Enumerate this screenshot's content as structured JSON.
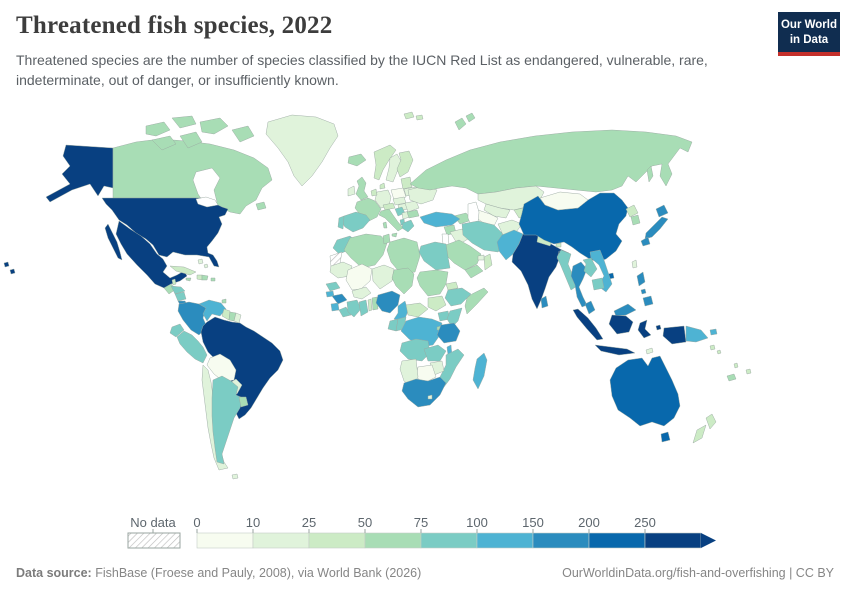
{
  "header": {
    "title": "Threatened fish species, 2022",
    "subtitle": "Threatened species are the number of species classified by the IUCN Red List as endangered, vulnerable, rare, indeterminate, out of danger, or insufficiently known.",
    "logo": {
      "line1": "Our World",
      "line2": "in Data",
      "bg_color": "#102d50",
      "accent_color": "#c4302b"
    }
  },
  "legend": {
    "no_data_label": "No data",
    "tick_values": [
      "0",
      "10",
      "25",
      "50",
      "75",
      "100",
      "150",
      "200",
      "250"
    ],
    "bins": [
      {
        "label": "0-10",
        "color": "#f7fcf0"
      },
      {
        "label": "10-25",
        "color": "#e0f3db"
      },
      {
        "label": "25-50",
        "color": "#ccebc5"
      },
      {
        "label": "50-75",
        "color": "#a8ddb5"
      },
      {
        "label": "75-100",
        "color": "#7bccc4"
      },
      {
        "label": "100-150",
        "color": "#4eb3d3"
      },
      {
        "label": "150-200",
        "color": "#2b8cbe"
      },
      {
        "label": "200-250",
        "color": "#0868ac"
      },
      {
        "label": "250+",
        "color": "#084081"
      }
    ]
  },
  "footer": {
    "source_label": "Data source:",
    "source_text": " FishBase (Froese and Pauly, 2008), via World Bank (2026)",
    "attribution": "OurWorldinData.org/fish-and-overfishing | CC BY"
  },
  "chart_data": {
    "type": "choropleth",
    "title": "Threatened fish species, 2022",
    "unit": "number of threatened fish species (IUCN Red List)",
    "bin_edges": [
      0,
      10,
      25,
      50,
      75,
      100,
      150,
      200,
      250
    ],
    "legend_arrow_open_ended": true,
    "countries": {
      "United States": "250+",
      "Mexico": "250+",
      "Brazil": "250+",
      "India": "250+",
      "Bangladesh": "250+",
      "Indonesia": "250+",
      "China": "200-250",
      "Australia": "200-250",
      "Colombia": "150-200",
      "Japan": "150-200",
      "Thailand": "150-200",
      "Philippines": "150-200",
      "Malaysia": "150-200",
      "Sri Lanka": "150-200",
      "Tanzania": "150-200",
      "South Africa": "150-200",
      "Costa Rica": "150-200",
      "Panama": "150-200",
      "Guinea": "150-200",
      "Nigeria": "150-200",
      "Turkey": "100-150",
      "Pakistan": "100-150",
      "Venezuela": "100-150",
      "Vietnam": "100-150",
      "Cameroon": "100-150",
      "Democratic Republic of Congo": "100-150",
      "Madagascar": "100-150",
      "Malawi": "100-150",
      "Papua New Guinea": "100-150",
      "Sierra Leone": "100-150",
      "Guinea-Bissau": "100-150",
      "Spain": "75-100",
      "Portugal": "75-100",
      "Greece": "75-100",
      "Croatia": "75-100",
      "Morocco": "75-100",
      "Egypt": "75-100",
      "Iran": "75-100",
      "Ethiopia": "75-100",
      "Kenya": "75-100",
      "Uganda": "75-100",
      "Cote d'Ivoire": "75-100",
      "Ghana": "75-100",
      "Gabon": "75-100",
      "Congo": "75-100",
      "Angola": "75-100",
      "Zambia": "75-100",
      "Mozambique": "75-100",
      "Ecuador": "75-100",
      "Peru": "75-100",
      "Argentina": "75-100",
      "Honduras": "75-100",
      "Nicaragua": "75-100",
      "Myanmar": "75-100",
      "Laos": "75-100",
      "Cambodia": "75-100",
      "Senegal": "75-100",
      "Liberia": "75-100",
      "Albania": "75-100",
      "Canada": "50-75",
      "Russia": "50-75",
      "United Kingdom": "50-75",
      "France": "50-75",
      "Italy": "50-75",
      "Saudi Arabia": "50-75",
      "Sudan": "50-75",
      "Libya": "50-75",
      "Algeria": "50-75",
      "Tunisia": "50-75",
      "Somalia": "50-75",
      "Syria": "50-75",
      "South Korea": "50-75",
      "Uruguay": "50-75",
      "Guatemala": "50-75",
      "Jamaica": "50-75",
      "Dominican Republic": "50-75",
      "Suriname": "50-75",
      "Yemen": "50-75",
      "Iceland": "50-75",
      "Bulgaria": "50-75",
      "New Caledonia": "50-75",
      "Georgia": "50-75",
      "Chad": "50-75",
      "Puerto Rico": "50-75",
      "Trinidad and Tobago": "50-75",
      "Rwanda": "50-75",
      "Benin": "50-75",
      "Norway": "25-50",
      "Finland": "25-50",
      "Nepal": "25-50",
      "North Korea": "25-50",
      "New Zealand": "25-50",
      "Cuba": "25-50",
      "Guyana": "25-50",
      "Central African Republic": "25-50",
      "South Sudan": "25-50",
      "Tajikistan": "25-50",
      "Denmark": "25-50",
      "Austria": "25-50",
      "Belgium": "25-50",
      "Estonia": "25-50",
      "Eritrea": "25-50",
      "Togo": "25-50",
      "Belize": "25-50",
      "Fiji": "25-50",
      "Vanuatu": "25-50",
      "Solomon Islands": "25-50",
      "Bhutan": "25-50",
      "Haiti": "25-50",
      "Greenland": "10-25",
      "Kazakhstan": "10-25",
      "Afghanistan": "10-25",
      "Ukraine": "10-25",
      "Germany": "10-25",
      "Ireland": "10-25",
      "Chile": "10-25",
      "Paraguay": "10-25",
      "Namibia": "10-25",
      "Zimbabwe": "10-25",
      "Taiwan": "10-25",
      "French Guiana": "10-25",
      "Sweden": "10-25",
      "Mauritania": "10-25",
      "Niger": "10-25",
      "Czechia": "10-25",
      "Hungary": "10-25",
      "Serbia": "10-25",
      "Romania": "10-25",
      "Belarus": "10-25",
      "Iraq": "10-25",
      "United Arab Emirates": "10-25",
      "Uzbekistan": "10-25",
      "Lesotho": "10-25",
      "Bahamas": "10-25",
      "Falkland Islands": "10-25",
      "Timor-Leste": "10-25",
      "Burkina Faso": "10-25",
      "Mongolia": "0-10",
      "Bolivia": "0-10",
      "Botswana": "0-10",
      "Mali": "0-10",
      "Poland": "0-10",
      "Turkmenistan": "0-10",
      "Oman": "25-50",
      "Western Sahara": "no-data"
    }
  }
}
